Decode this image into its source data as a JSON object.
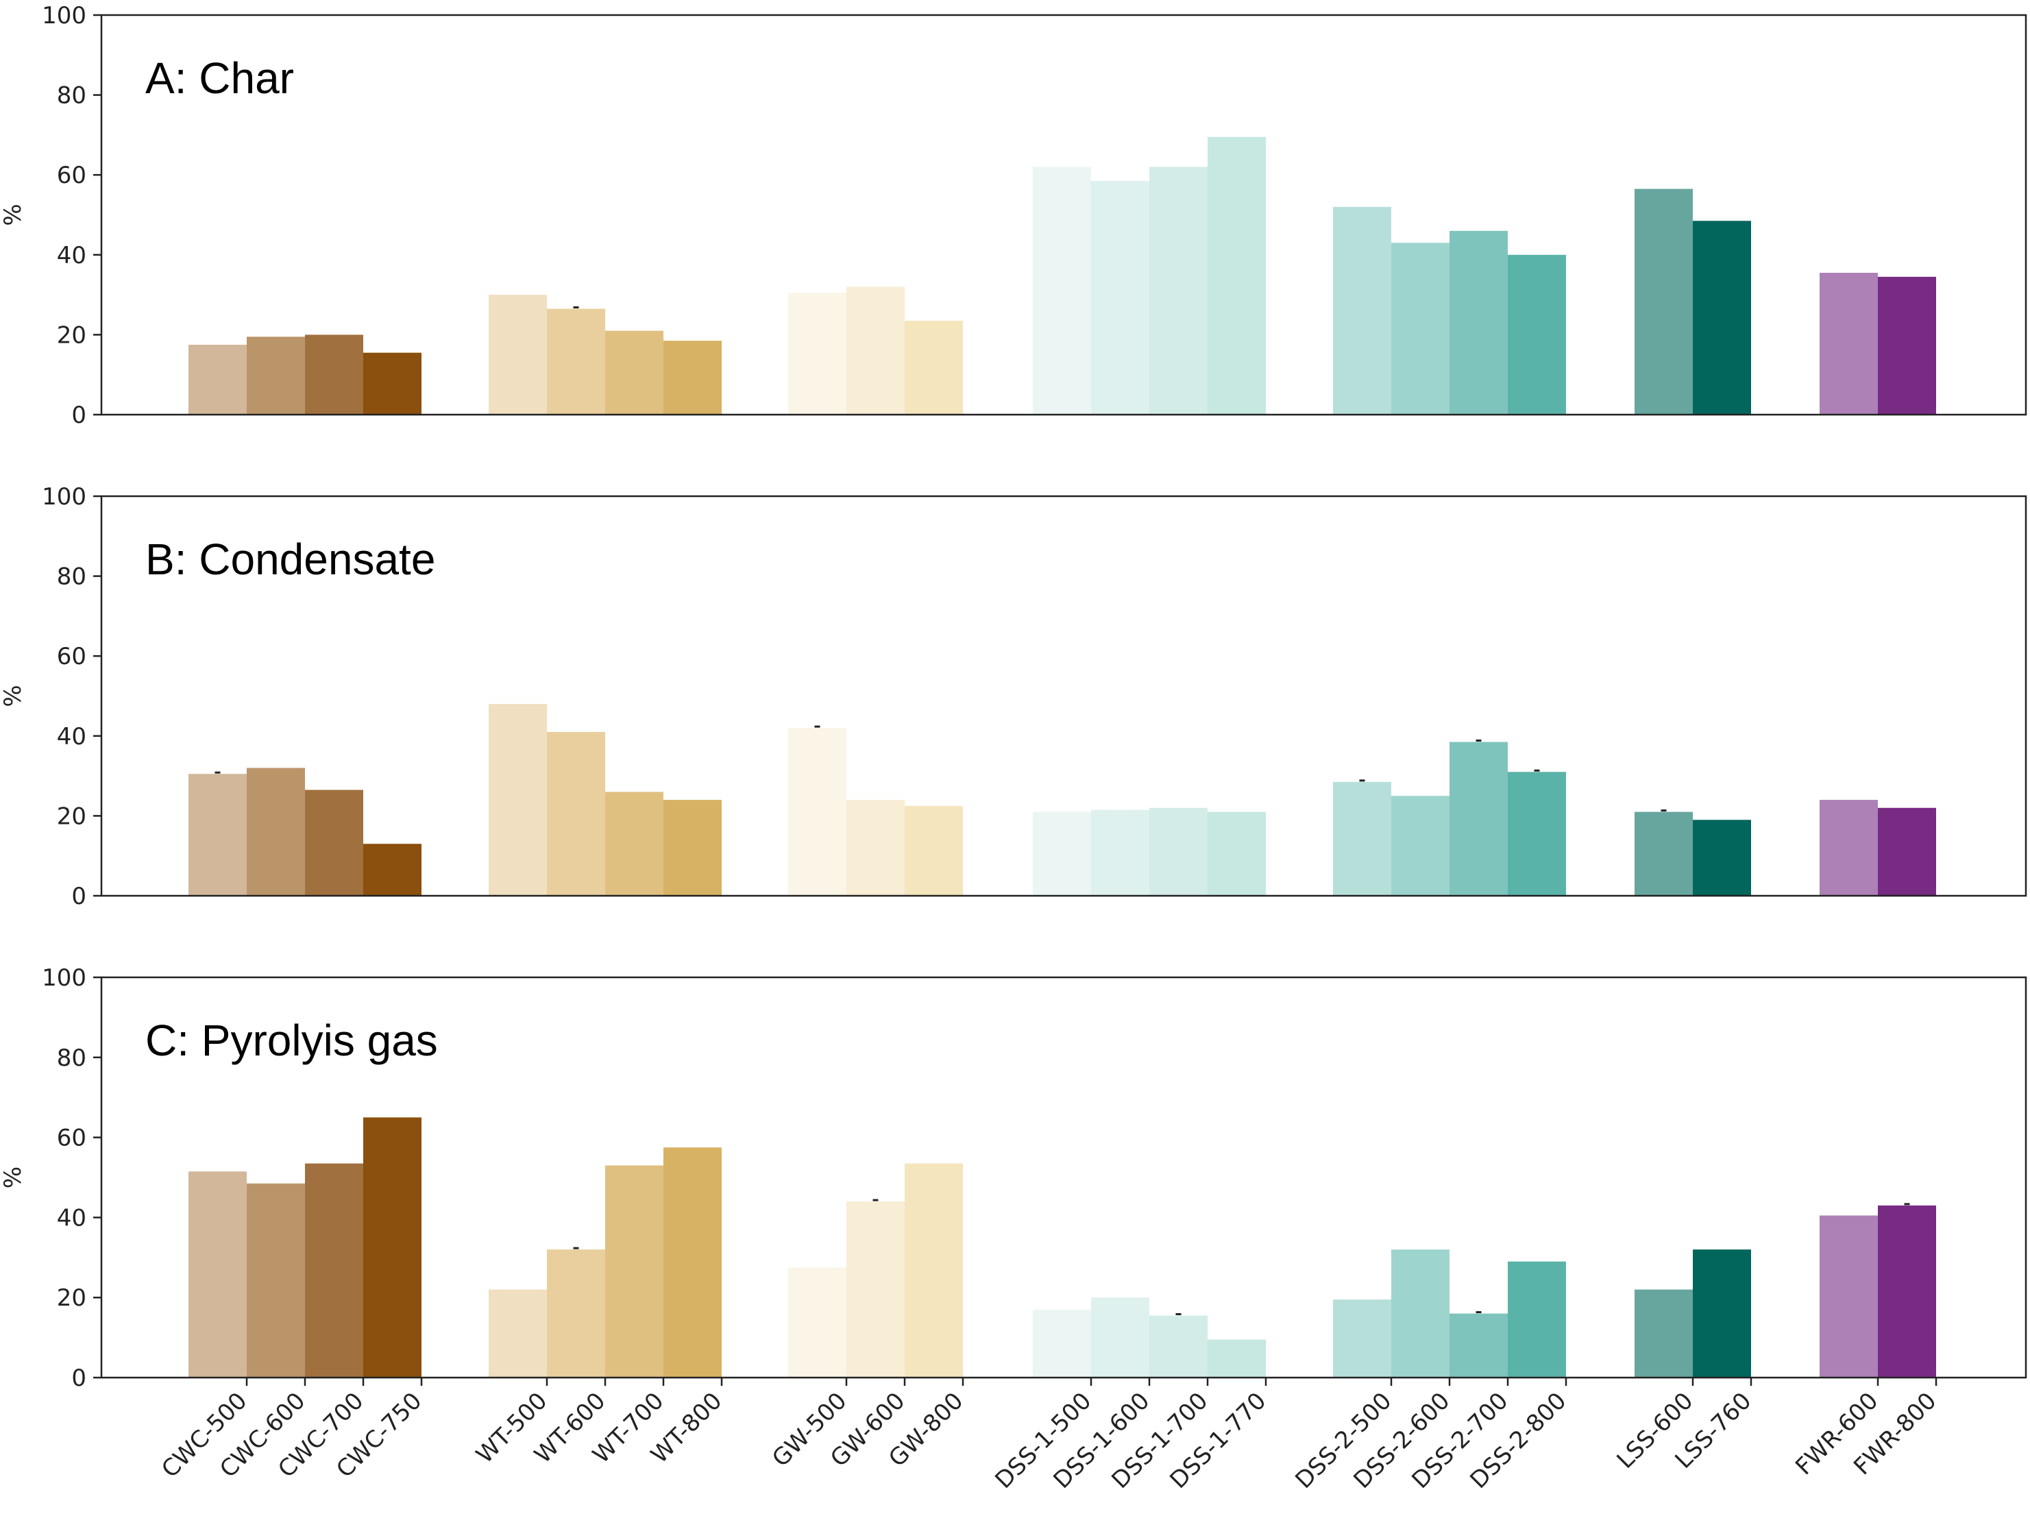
{
  "chart_data": [
    {
      "type": "bar",
      "title": "A: Char",
      "ylabel": "%",
      "ylim": [
        0,
        100
      ],
      "yticks": [
        0,
        20,
        40,
        60,
        80,
        100
      ],
      "categories": [
        "CWC-500",
        "CWC-600",
        "CWC-700",
        "CWC-750",
        "WT-500",
        "WT-600",
        "WT-700",
        "WT-800",
        "GW-500",
        "GW-600",
        "GW-800",
        "DSS-1-500",
        "DSS-1-600",
        "DSS-1-700",
        "DSS-1-770",
        "DSS-2-500",
        "DSS-2-600",
        "DSS-2-700",
        "DSS-2-800",
        "LSS-600",
        "LSS-760",
        "FWR-600",
        "FWR-800"
      ],
      "values": [
        17.5,
        19.5,
        20,
        15.5,
        30,
        26.5,
        21,
        18.5,
        30.5,
        32,
        23.5,
        62,
        58.5,
        62,
        69.5,
        52,
        43,
        46,
        40,
        56.5,
        48.5,
        35.5,
        34.5
      ],
      "error_bars_on": [
        "WT-600"
      ],
      "grid": false,
      "legend": "none"
    },
    {
      "type": "bar",
      "title": "B: Condensate",
      "ylabel": "%",
      "ylim": [
        0,
        100
      ],
      "yticks": [
        0,
        20,
        40,
        60,
        80,
        100
      ],
      "categories": [
        "CWC-500",
        "CWC-600",
        "CWC-700",
        "CWC-750",
        "WT-500",
        "WT-600",
        "WT-700",
        "WT-800",
        "GW-500",
        "GW-600",
        "GW-800",
        "DSS-1-500",
        "DSS-1-600",
        "DSS-1-700",
        "DSS-1-770",
        "DSS-2-500",
        "DSS-2-600",
        "DSS-2-700",
        "DSS-2-800",
        "LSS-600",
        "LSS-760",
        "FWR-600",
        "FWR-800"
      ],
      "values": [
        30.5,
        32,
        26.5,
        13,
        48,
        41,
        26,
        24,
        42,
        24,
        22.5,
        21,
        21.5,
        22,
        21,
        28.5,
        25,
        38.5,
        31,
        21,
        19,
        24,
        22
      ],
      "error_bars_on": [
        "CWC-500",
        "GW-500",
        "DSS-2-500",
        "DSS-2-700",
        "DSS-2-800",
        "LSS-600"
      ],
      "grid": false,
      "legend": "none"
    },
    {
      "type": "bar",
      "title": "C: Pyrolyis gas",
      "ylabel": "%",
      "ylim": [
        0,
        100
      ],
      "yticks": [
        0,
        20,
        40,
        60,
        80,
        100
      ],
      "categories": [
        "CWC-500",
        "CWC-600",
        "CWC-700",
        "CWC-750",
        "WT-500",
        "WT-600",
        "WT-700",
        "WT-800",
        "GW-500",
        "GW-600",
        "GW-800",
        "DSS-1-500",
        "DSS-1-600",
        "DSS-1-700",
        "DSS-1-770",
        "DSS-2-500",
        "DSS-2-600",
        "DSS-2-700",
        "DSS-2-800",
        "LSS-600",
        "LSS-760",
        "FWR-600",
        "FWR-800"
      ],
      "values": [
        51.5,
        48.5,
        53.5,
        65,
        22,
        32,
        53,
        57.5,
        27.5,
        44,
        53.5,
        17,
        20,
        15.5,
        9.5,
        19.5,
        32,
        16,
        29,
        22,
        32,
        40.5,
        43
      ],
      "error_bars_on": [
        "WT-600",
        "GW-600",
        "DSS-1-700",
        "DSS-2-700",
        "FWR-800"
      ],
      "grid": false,
      "legend": "none"
    }
  ],
  "bar_groups": [
    {
      "categories": [
        "CWC-500",
        "CWC-600",
        "CWC-700",
        "CWC-750"
      ],
      "colors": [
        "#d2b79a",
        "#bb956a",
        "#a0703e",
        "#8b4f0e"
      ]
    },
    {
      "categories": [
        "WT-500",
        "WT-600",
        "WT-700",
        "WT-800"
      ],
      "colors": [
        "#f0dfc0",
        "#e8cf9d",
        "#e0c080",
        "#d8b264"
      ]
    },
    {
      "categories": [
        "GW-500",
        "GW-600",
        "GW-800"
      ],
      "colors": [
        "#fbf5e8",
        "#f8edd5",
        "#f5e5bd"
      ]
    },
    {
      "categories": [
        "DSS-1-500",
        "DSS-1-600",
        "DSS-1-700",
        "DSS-1-770"
      ],
      "colors": [
        "#ebf6f4",
        "#def1ee",
        "#d3ece8",
        "#c6e8e1"
      ]
    },
    {
      "categories": [
        "DSS-2-500",
        "DSS-2-600",
        "DSS-2-700",
        "DSS-2-800"
      ],
      "colors": [
        "#b7dfda",
        "#9ed4ce",
        "#7fc4bc",
        "#5ab3a9"
      ]
    },
    {
      "categories": [
        "LSS-600",
        "LSS-760"
      ],
      "colors": [
        "#67a69f",
        "#02665c"
      ]
    },
    {
      "categories": [
        "FWR-600",
        "FWR-800"
      ],
      "colors": [
        "#ad80b6",
        "#772b83"
      ]
    }
  ]
}
